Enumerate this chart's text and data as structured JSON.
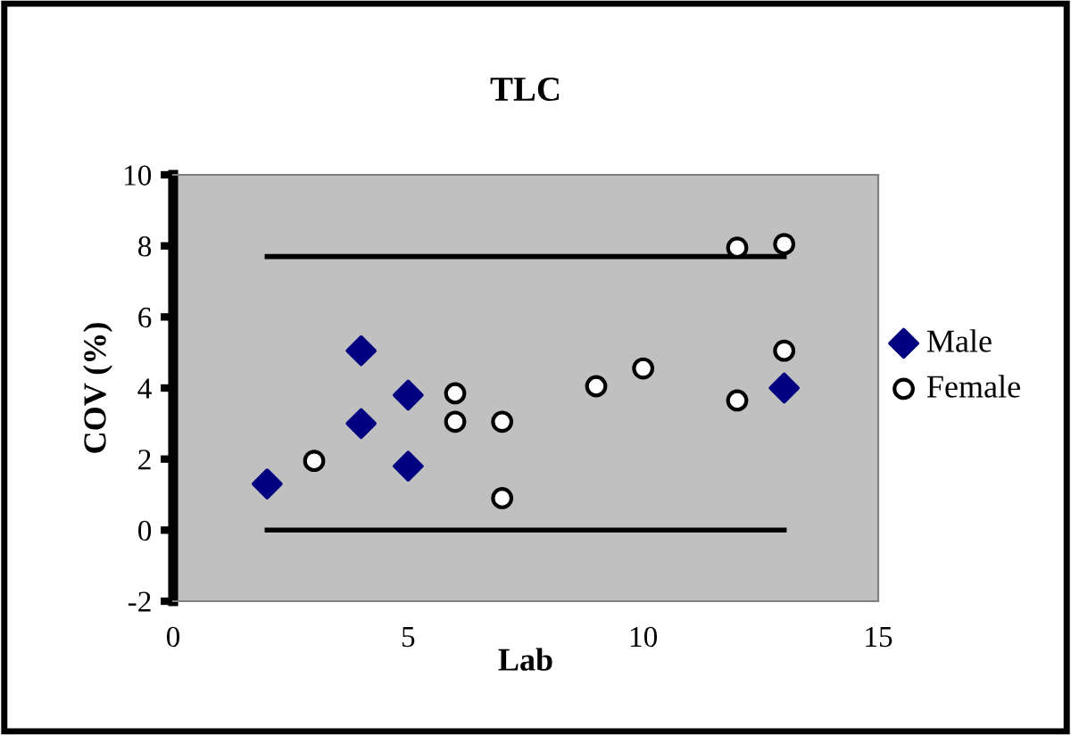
{
  "chart_data": {
    "type": "scatter",
    "title": "TLC",
    "xlabel": "Lab",
    "ylabel": "COV (%)",
    "xlim": [
      0,
      15
    ],
    "xticks": [
      0,
      5,
      10,
      15
    ],
    "ylim": [
      -2,
      10
    ],
    "yticks": [
      -2,
      0,
      2,
      4,
      6,
      8,
      10
    ],
    "grid": false,
    "legend": "right",
    "series": [
      {
        "name": "Male",
        "color": "#000080",
        "marker": "diamond",
        "x": [
          2,
          4,
          4,
          5,
          5,
          13
        ],
        "values": [
          1.3,
          5.05,
          3.0,
          3.8,
          1.8,
          4.0
        ]
      },
      {
        "name": "Female",
        "color": "#ffffff",
        "marker": "circle",
        "x": [
          3,
          6,
          6,
          7,
          7,
          9,
          10,
          12,
          12,
          13,
          13
        ],
        "values": [
          1.95,
          3.85,
          3.05,
          3.05,
          0.9,
          4.05,
          4.55,
          7.95,
          3.65,
          8.05,
          5.05
        ]
      },
      {
        "type": "line",
        "color": "#000000",
        "marker": "none",
        "x": [
          2,
          13
        ],
        "values": [
          7.7,
          7.7
        ]
      },
      {
        "type": "line",
        "color": "#000000",
        "marker": "none",
        "x": [
          2,
          13
        ],
        "values": [
          0,
          0
        ]
      }
    ]
  }
}
